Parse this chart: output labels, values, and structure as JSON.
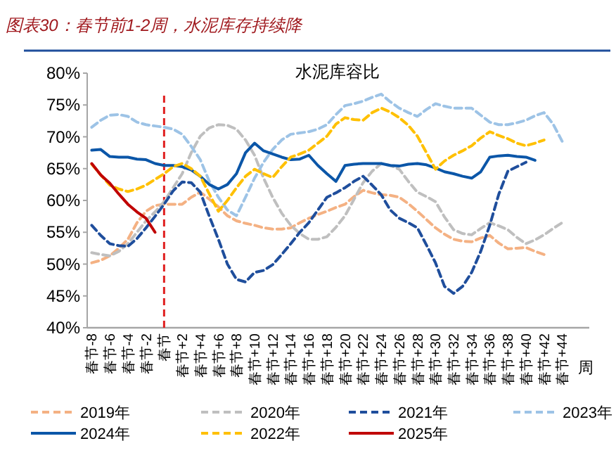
{
  "chart_data": {
    "type": "line",
    "title": "图表30：春节前1-2周，水泥库存持续降",
    "subtitle": "水泥库容比",
    "xlabel": "周",
    "categories": [
      "春节-8",
      null,
      "春节-6",
      null,
      "春节-4",
      null,
      "春节-2",
      null,
      "春节",
      null,
      "春节+2",
      null,
      "春节+4",
      null,
      "春节+6",
      null,
      "春节+8",
      null,
      "春节+10",
      null,
      "春节+12",
      null,
      "春节+14",
      null,
      "春节+16",
      null,
      "春节+18",
      null,
      "春节+20",
      null,
      "春节+22",
      null,
      "春节+24",
      null,
      "春节+26",
      null,
      "春节+28",
      null,
      "春节+30",
      null,
      "春节+32",
      null,
      "春节+34",
      null,
      "春节+36",
      null,
      "春节+38",
      null,
      "春节+40",
      null,
      "春节+42",
      null,
      "春节+44"
    ],
    "ylim": [
      40,
      80
    ],
    "yticks": [
      {
        "value": 40,
        "label": "40%"
      },
      {
        "value": 45,
        "label": "45%"
      },
      {
        "value": 50,
        "label": "50%"
      },
      {
        "value": 55,
        "label": "55%"
      },
      {
        "value": 60,
        "label": "60%"
      },
      {
        "value": 65,
        "label": "65%"
      },
      {
        "value": 70,
        "label": "70%"
      },
      {
        "value": 75,
        "label": "75%"
      },
      {
        "value": 80,
        "label": "80%"
      }
    ],
    "legend": "bottom",
    "ref_lines": [
      {
        "axis": "x",
        "value": "春节",
        "color": "#e02020",
        "line_style": "dashed"
      }
    ],
    "series": [
      {
        "name": "2019年",
        "color": "#f4b183",
        "line_style": "dashed",
        "values": [
          50.2,
          50.6,
          51.3,
          52.5,
          53.9,
          56.5,
          58.3,
          59.2,
          59.4,
          59.4,
          59.4,
          60.5,
          61.3,
          60.2,
          59.0,
          57.6,
          56.8,
          56.4,
          56.1,
          55.7,
          55.5,
          55.5,
          55.7,
          56.5,
          57.2,
          57.8,
          58.3,
          58.9,
          59.4,
          60.6,
          61.6,
          61.2,
          60.9,
          60.8,
          60.5,
          59.5,
          58.3,
          57.0,
          55.7,
          54.7,
          53.9,
          53.6,
          53.5,
          54.1,
          54.5,
          53.3,
          52.4,
          52.5,
          52.6,
          52.0,
          51.5,
          null,
          null
        ]
      },
      {
        "name": "2020年",
        "color": "#bfbfbf",
        "line_style": "dashed",
        "values": [
          51.8,
          51.5,
          51.3,
          52.0,
          53.2,
          55.0,
          56.8,
          58.2,
          59.8,
          62.0,
          64.2,
          67.5,
          70.1,
          71.4,
          71.9,
          71.8,
          71.2,
          69.5,
          67.1,
          63.5,
          60.5,
          58.0,
          56.1,
          54.8,
          53.9,
          53.9,
          54.3,
          55.8,
          57.6,
          60.2,
          62.8,
          64.6,
          65.8,
          65.5,
          64.9,
          63.0,
          61.3,
          60.6,
          59.8,
          57.4,
          55.4,
          54.8,
          54.6,
          55.6,
          56.5,
          56.0,
          55.4,
          54.2,
          53.2,
          53.8,
          54.6,
          55.6,
          56.5
        ]
      },
      {
        "name": "2021年",
        "color": "#1f4e9c",
        "line_style": "dashed",
        "values": [
          56.1,
          54.5,
          53.2,
          52.9,
          52.8,
          54.0,
          55.7,
          57.5,
          59.4,
          61.5,
          62.9,
          62.8,
          61.3,
          57.5,
          53.9,
          50.0,
          47.6,
          47.2,
          48.7,
          49.0,
          49.9,
          51.5,
          53.2,
          55.0,
          56.5,
          58.5,
          60.5,
          61.2,
          62.0,
          63.0,
          63.8,
          62.4,
          60.9,
          58.5,
          57.2,
          56.5,
          55.7,
          53.0,
          50.2,
          46.5,
          45.4,
          46.5,
          48.7,
          52.0,
          56.1,
          61.0,
          64.6,
          65.3,
          66.0,
          null,
          null,
          null,
          null
        ]
      },
      {
        "name": "2023年",
        "color": "#9dc3e6",
        "line_style": "dashed",
        "values": [
          71.5,
          72.6,
          73.4,
          73.5,
          73.2,
          72.3,
          71.9,
          71.7,
          71.5,
          71.2,
          70.4,
          68.5,
          66.4,
          63.0,
          60.5,
          58.5,
          57.6,
          60.5,
          63.5,
          66.0,
          68.0,
          69.5,
          70.4,
          70.6,
          70.8,
          71.2,
          71.9,
          73.5,
          74.9,
          75.2,
          75.6,
          76.2,
          76.7,
          75.5,
          74.5,
          73.8,
          73.2,
          74.3,
          75.2,
          74.8,
          74.5,
          74.5,
          74.5,
          73.4,
          72.3,
          71.9,
          71.9,
          72.2,
          72.6,
          73.3,
          73.8,
          72.0,
          69.3
        ]
      },
      {
        "name": "2024年",
        "color": "#0b56a8",
        "line_style": "solid",
        "values": [
          67.9,
          68.0,
          66.9,
          66.8,
          66.8,
          66.5,
          66.4,
          65.8,
          65.5,
          65.5,
          65.3,
          64.8,
          63.8,
          62.5,
          61.8,
          62.5,
          64.2,
          67.5,
          69.0,
          67.8,
          67.3,
          66.8,
          66.4,
          66.5,
          67.1,
          65.5,
          64.2,
          63.0,
          65.5,
          65.7,
          65.8,
          65.8,
          65.8,
          65.5,
          65.4,
          65.7,
          65.8,
          65.6,
          65.1,
          64.5,
          64.2,
          63.8,
          63.5,
          64.5,
          66.8,
          67.0,
          67.1,
          66.9,
          66.8,
          66.3,
          null,
          null,
          null
        ]
      },
      {
        "name": "2022年",
        "color": "#ffc000",
        "line_style": "dashed",
        "values": [
          65.7,
          64.0,
          62.4,
          61.8,
          61.4,
          61.8,
          62.4,
          63.3,
          64.2,
          65.3,
          65.8,
          65.0,
          63.8,
          61.0,
          58.3,
          60.0,
          62.0,
          63.8,
          64.9,
          64.2,
          63.6,
          65.3,
          66.8,
          67.3,
          67.9,
          69.0,
          70.1,
          72.0,
          73.0,
          72.7,
          72.6,
          73.8,
          74.5,
          73.9,
          73.0,
          71.8,
          70.1,
          67.5,
          64.9,
          66.2,
          67.1,
          67.8,
          68.6,
          69.8,
          70.8,
          70.2,
          69.7,
          69.0,
          68.6,
          69.0,
          69.5,
          null,
          null
        ]
      },
      {
        "name": "2025年",
        "color": "#c00000",
        "line_style": "solid",
        "values": [
          65.8,
          64.0,
          62.7,
          61.0,
          59.4,
          58.2,
          57.2,
          55.0,
          null,
          null,
          null,
          null,
          null,
          null,
          null,
          null,
          null,
          null,
          null,
          null,
          null,
          null,
          null,
          null,
          null,
          null,
          null,
          null,
          null,
          null,
          null,
          null,
          null,
          null,
          null,
          null,
          null,
          null,
          null,
          null,
          null,
          null,
          null,
          null,
          null,
          null,
          null,
          null,
          null,
          null,
          null,
          null,
          null
        ]
      }
    ]
  }
}
